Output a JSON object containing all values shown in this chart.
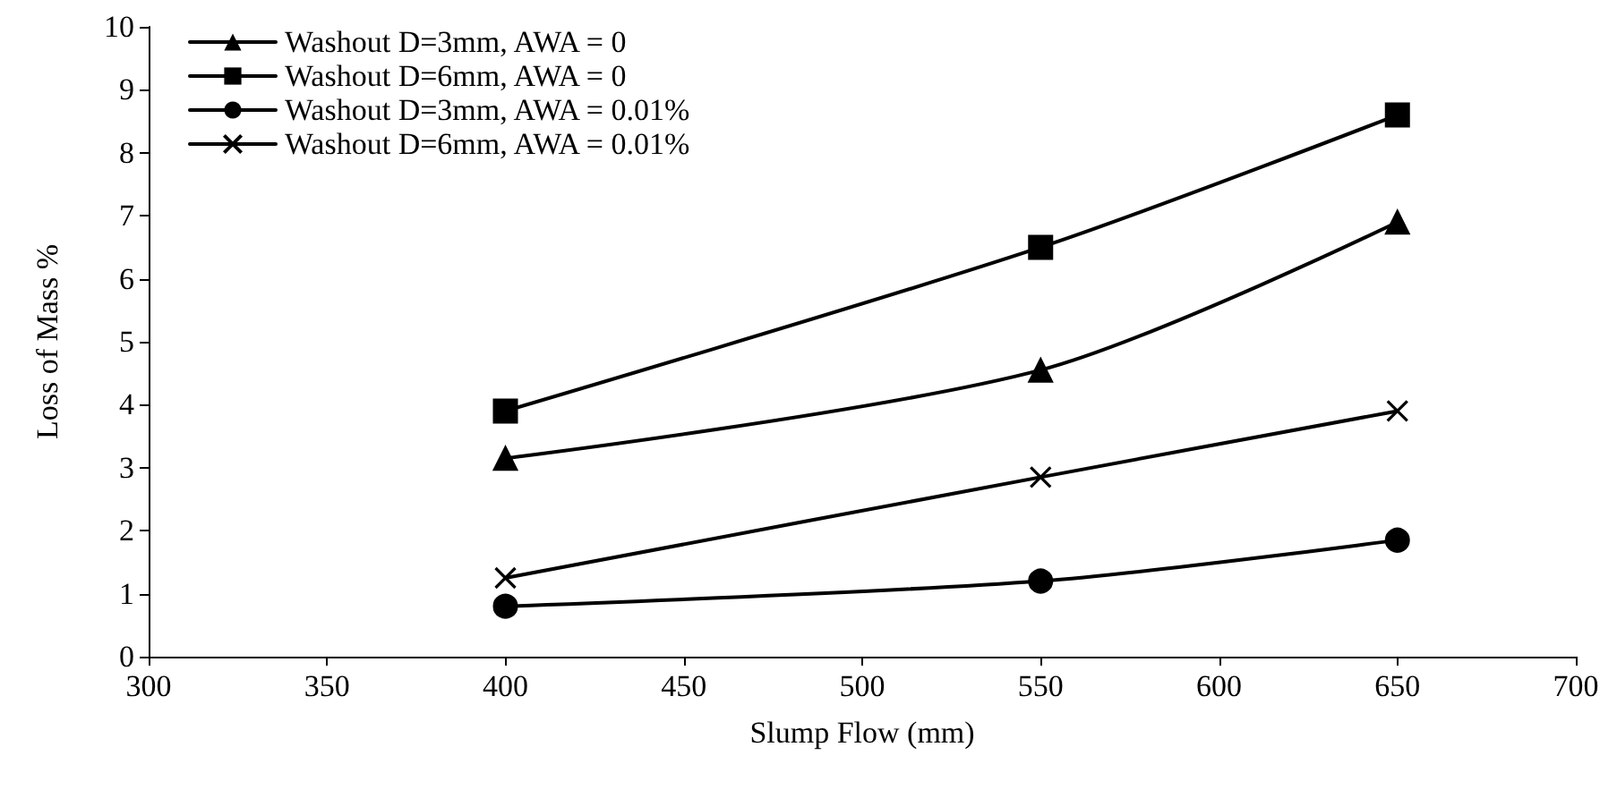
{
  "chart_data": {
    "type": "line",
    "xlabel": "Slump Flow (mm)",
    "ylabel": "Loss of Mass %",
    "xlim": [
      300,
      700
    ],
    "xticks": [
      300,
      350,
      400,
      450,
      500,
      550,
      600,
      650,
      700
    ],
    "ylim": [
      0,
      10
    ],
    "yticks": [
      0,
      1,
      2,
      3,
      4,
      5,
      6,
      7,
      8,
      9,
      10
    ],
    "grid": false,
    "legend": "top left",
    "line_style": "solid",
    "series": [
      {
        "name": "Washout D=3mm, AWA = 0",
        "color": "#000000",
        "marker": "triangle",
        "x": [
          400,
          550,
          650
        ],
        "values": [
          3.15,
          4.55,
          6.9
        ]
      },
      {
        "name": "Washout D=6mm, AWA = 0",
        "color": "#000000",
        "marker": "square",
        "x": [
          400,
          550,
          650
        ],
        "values": [
          3.9,
          6.5,
          8.6
        ]
      },
      {
        "name": "Washout D=3mm, AWA = 0.01%",
        "color": "#000000",
        "marker": "circle",
        "x": [
          400,
          550,
          650
        ],
        "values": [
          0.8,
          1.2,
          1.85
        ]
      },
      {
        "name": "Washout D=6mm, AWA = 0.01%",
        "color": "#000000",
        "marker": "cross",
        "x": [
          400,
          550,
          650
        ],
        "values": [
          1.25,
          2.85,
          3.9
        ]
      }
    ]
  }
}
